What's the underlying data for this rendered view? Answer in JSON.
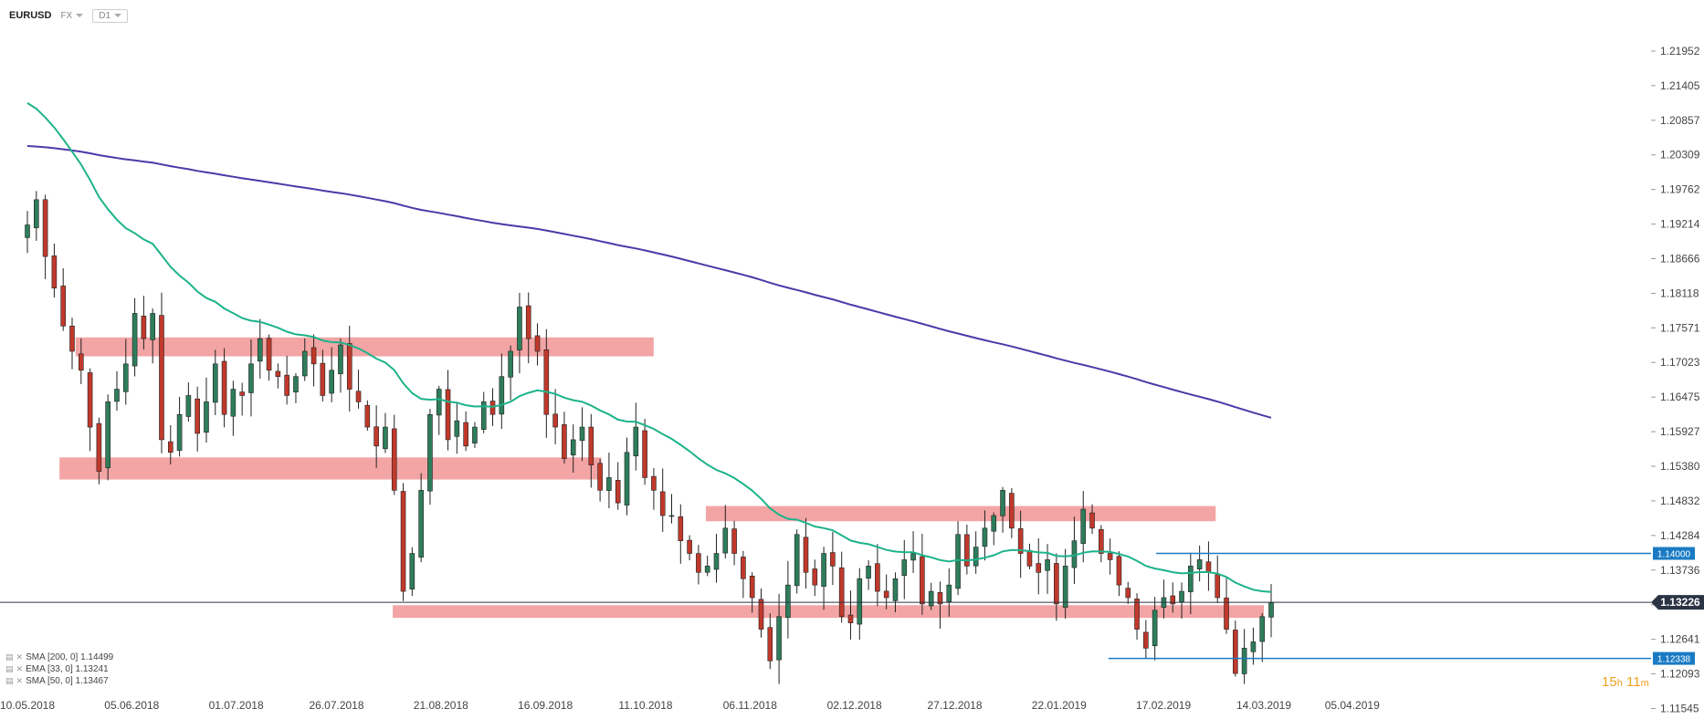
{
  "toolbar": {
    "symbol": "EURUSD",
    "market": "FX",
    "timeframe": "D1"
  },
  "legend": [
    {
      "label": "SMA [200, 0] 1.14499"
    },
    {
      "label": "EMA [33, 0] 1.13241"
    },
    {
      "label": "SMA [50, 0] 1.13467"
    }
  ],
  "countdown": {
    "hours": "15",
    "h_unit": "h",
    "minutes": "11",
    "m_unit": "m"
  },
  "colors": {
    "bull": "#2e7d5b",
    "bear": "#c0392b",
    "sma200": "#4b3aa8",
    "ema33": "#1db38a",
    "zone": "#f29a9a",
    "level": "#1a7bc4",
    "current": "#2b3445"
  },
  "chart_data": {
    "type": "candlestick",
    "symbol": "EURUSD",
    "timeframe": "D1",
    "x_ticks": [
      "10.05.2018",
      "05.06.2018",
      "01.07.2018",
      "26.07.2018",
      "21.08.2018",
      "16.09.2018",
      "11.10.2018",
      "06.11.2018",
      "02.12.2018",
      "27.12.2018",
      "22.01.2019",
      "17.02.2019",
      "14.03.2019",
      "05.04.2019"
    ],
    "y_ticks": [
      "1.21952",
      "1.21405",
      "1.20857",
      "1.20309",
      "1.19762",
      "1.19214",
      "1.18666",
      "1.18118",
      "1.17571",
      "1.17023",
      "1.16475",
      "1.15927",
      "1.15380",
      "1.14832",
      "1.14284",
      "1.13736",
      "1.13188",
      "1.12641",
      "1.12093",
      "1.11545"
    ],
    "ylim": [
      1.11545,
      1.22226
    ],
    "bars_from": "10.05.2018",
    "bars_to": "14.03.2019",
    "current_price": "1.13226",
    "levels": [
      {
        "label": "1.14000",
        "value": 1.14
      },
      {
        "label": "1.12338",
        "value": 1.12338
      }
    ],
    "zones": [
      {
        "from": "22.05.2018",
        "to": "13.10.2018",
        "low": 1.1712,
        "high": 1.1742
      },
      {
        "from": "18.05.2018",
        "to": "30.09.2018",
        "low": 1.1517,
        "high": 1.1552
      },
      {
        "from": "26.10.2018",
        "to": "02.03.2019",
        "low": 1.1451,
        "high": 1.1475
      },
      {
        "from": "09.08.2018",
        "to": "14.03.2019",
        "low": 1.1298,
        "high": 1.1318
      }
    ],
    "series": [
      {
        "name": "SMA [200, 0]",
        "last": 1.14499,
        "start": 1.2045
      },
      {
        "name": "EMA [33, 0]",
        "last": 1.13241,
        "start": 1.2125
      },
      {
        "name": "SMA [50, 0]",
        "last": 1.13467
      }
    ],
    "price_path": [
      1.192,
      1.196,
      1.187,
      1.182,
      1.176,
      1.172,
      1.169,
      1.16,
      1.153,
      1.164,
      1.166,
      1.17,
      1.178,
      1.174,
      1.178,
      1.158,
      1.156,
      1.162,
      1.165,
      1.159,
      1.164,
      1.17,
      1.162,
      1.166,
      1.165,
      1.17,
      1.174,
      1.169,
      1.168,
      1.165,
      1.168,
      1.172,
      1.17,
      1.165,
      1.169,
      1.173,
      1.166,
      1.164,
      1.16,
      1.157,
      1.16,
      1.15,
      1.134,
      1.14,
      1.15,
      1.162,
      1.166,
      1.158,
      1.161,
      1.157,
      1.16,
      1.164,
      1.162,
      1.168,
      1.172,
      1.179,
      1.174,
      1.172,
      1.162,
      1.16,
      1.155,
      1.158,
      1.16,
      1.154,
      1.15,
      1.152,
      1.148,
      1.156,
      1.16,
      1.152,
      1.15,
      1.146,
      1.146,
      1.142,
      1.14,
      1.137,
      1.138,
      1.14,
      1.144,
      1.14,
      1.136,
      1.133,
      1.128,
      1.123,
      1.13,
      1.135,
      1.143,
      1.137,
      1.135,
      1.14,
      1.138,
      1.13,
      1.129,
      1.136,
      1.138,
      1.134,
      1.133,
      1.136,
      1.139,
      1.14,
      1.132,
      1.134,
      1.132,
      1.135,
      1.143,
      1.138,
      1.141,
      1.144,
      1.146,
      1.15,
      1.144,
      1.14,
      1.138,
      1.137,
      1.139,
      1.132,
      1.138,
      1.142,
      1.147,
      1.144,
      1.14,
      1.139,
      1.135,
      1.133,
      1.128,
      1.125,
      1.131,
      1.133,
      1.132,
      1.134,
      1.138,
      1.139,
      1.137,
      1.133,
      1.128,
      1.121,
      1.125,
      1.126,
      1.13,
      1.1322
    ]
  }
}
